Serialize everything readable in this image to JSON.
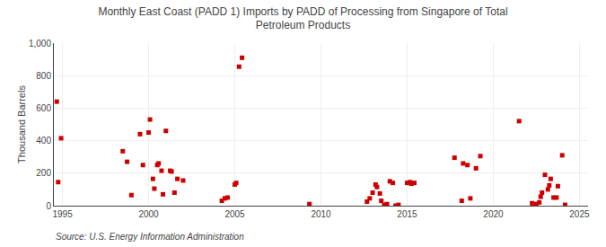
{
  "chart_data": {
    "type": "scatter",
    "title": "Monthly East Coast (PADD 1) Imports by PADD of Processing from Singapore of Total\nPetroleum Products",
    "ylabel": "Thousand Barrels",
    "annotations": [
      "Source: U.S. Energy Information Administration"
    ],
    "color": "#cc0000",
    "marker": "square",
    "grid": true,
    "xlim": [
      1994.5,
      2025.5
    ],
    "xticks": [
      1995,
      2000,
      2005,
      2010,
      2015,
      2020,
      2025
    ],
    "ylim": [
      0,
      1000
    ],
    "yticks": [
      0,
      200,
      400,
      600,
      800,
      {
        "value": 1000,
        "label": "1,000"
      }
    ],
    "x": [
      1994.67,
      1994.75,
      1994.92,
      1998.5,
      1998.75,
      1999.0,
      1999.5,
      1999.67,
      2000.0,
      2000.08,
      2000.25,
      2000.33,
      2000.5,
      2000.58,
      2000.75,
      2000.83,
      2001.0,
      2001.25,
      2001.33,
      2001.5,
      2001.67,
      2002.0,
      2004.25,
      2004.42,
      2004.58,
      2005.0,
      2005.08,
      2005.25,
      2005.42,
      2009.33,
      2012.67,
      2012.83,
      2013.0,
      2013.17,
      2013.25,
      2013.42,
      2013.5,
      2013.67,
      2013.83,
      2014.0,
      2014.17,
      2014.33,
      2014.5,
      2015.0,
      2015.17,
      2015.25,
      2015.42,
      2017.75,
      2018.17,
      2018.25,
      2018.5,
      2018.67,
      2019.0,
      2019.25,
      2021.5,
      2022.25,
      2022.33,
      2022.5,
      2022.67,
      2022.75,
      2022.83,
      2023.0,
      2023.17,
      2023.25,
      2023.33,
      2023.5,
      2023.67,
      2023.75,
      2024.0,
      2024.17
    ],
    "values": [
      640,
      145,
      415,
      335,
      270,
      65,
      440,
      250,
      450,
      530,
      165,
      105,
      250,
      260,
      215,
      70,
      460,
      215,
      210,
      80,
      165,
      155,
      30,
      45,
      50,
      130,
      140,
      855,
      910,
      10,
      25,
      45,
      80,
      130,
      115,
      75,
      30,
      5,
      10,
      150,
      140,
      0,
      5,
      140,
      145,
      135,
      140,
      295,
      30,
      260,
      250,
      45,
      230,
      305,
      520,
      15,
      5,
      10,
      20,
      55,
      80,
      190,
      100,
      125,
      165,
      50,
      50,
      120,
      310,
      5
    ]
  }
}
